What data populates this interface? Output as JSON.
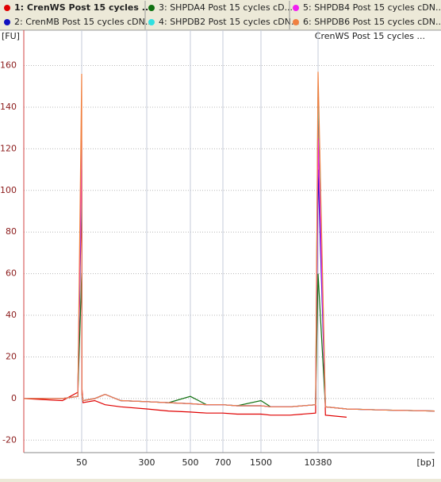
{
  "chart_data": {
    "type": "line",
    "y_unit": "[FU]",
    "x_unit": "[bp]",
    "annotation": "CrenWS Post 15 cycles ...",
    "x": [
      35,
      45,
      49,
      50,
      51,
      55,
      100,
      140,
      200,
      300,
      400,
      500,
      600,
      700,
      1000,
      1500,
      3000,
      6000,
      10000,
      10380,
      10800,
      12000,
      14000,
      17000
    ],
    "series": [
      {
        "name": "1: CrenWS Post 15 cycles ...",
        "color": "#e00000",
        "values": [
          0,
          -1,
          3,
          100,
          5,
          -2,
          -1,
          -3,
          -4,
          -5,
          -6,
          -6.5,
          -7,
          -7,
          -7.5,
          -7.5,
          -8,
          -8,
          -7,
          145,
          -8,
          -9,
          null,
          null
        ]
      },
      {
        "name": "2: CrenMB Post 15 cycles cDN...",
        "color": "#1010c0",
        "values": [
          0,
          0,
          1,
          110,
          2,
          -1,
          0,
          2,
          -1,
          -1.5,
          -2,
          -2.5,
          -3,
          -3,
          -3.5,
          -3.5,
          -4,
          -4,
          -3,
          110,
          -4,
          -5,
          -5.5,
          -6
        ]
      },
      {
        "name": "3: SHPDA4 Post 15 cycles cD...",
        "color": "#107010",
        "values": [
          0,
          0,
          1,
          60,
          2,
          -1,
          0,
          2,
          -1,
          -1.5,
          -2,
          1,
          -3,
          -3,
          -3.5,
          -1,
          -4,
          -4,
          -3,
          60,
          -4,
          -5,
          -5.5,
          -6
        ]
      },
      {
        "name": "4: SHPDB2 Post 15 cycles cDN...",
        "color": "#30e0e0",
        "values": [
          0,
          0,
          1,
          120,
          2,
          -1,
          0,
          2,
          -1,
          -1.5,
          -2,
          -2.5,
          -3,
          -3,
          -3.5,
          -3.5,
          -4,
          -4,
          -3,
          150,
          -4,
          -5,
          -5.5,
          -6
        ]
      },
      {
        "name": "5: SHPDB4 Post 15 cycles cDN...",
        "color": "#f020f0",
        "values": [
          0,
          0,
          1,
          124,
          2,
          -1,
          0,
          2,
          -1,
          -1.5,
          -2,
          -2.5,
          -3,
          -3,
          -3.5,
          -3.5,
          -4,
          -4,
          -3,
          125,
          -4,
          -5,
          -5.5,
          -6
        ]
      },
      {
        "name": "6: SHPDB6 Post 15 cycles cDN...",
        "color": "#f08040",
        "values": [
          0,
          0,
          1,
          156,
          2,
          -1,
          0,
          2,
          -1,
          -1.5,
          -2,
          -2.5,
          -3,
          -3,
          -3.5,
          -3.5,
          -4,
          -4,
          -3,
          157,
          -4,
          -5,
          -5.5,
          -6
        ]
      }
    ],
    "xlim": [
      35,
      17000
    ],
    "xticks": [
      50,
      300,
      500,
      700,
      1500,
      10380
    ],
    "ylim": [
      -26,
      177
    ],
    "yticks": [
      -20,
      0,
      20,
      40,
      60,
      80,
      100,
      120,
      140,
      160
    ],
    "grid": true
  }
}
